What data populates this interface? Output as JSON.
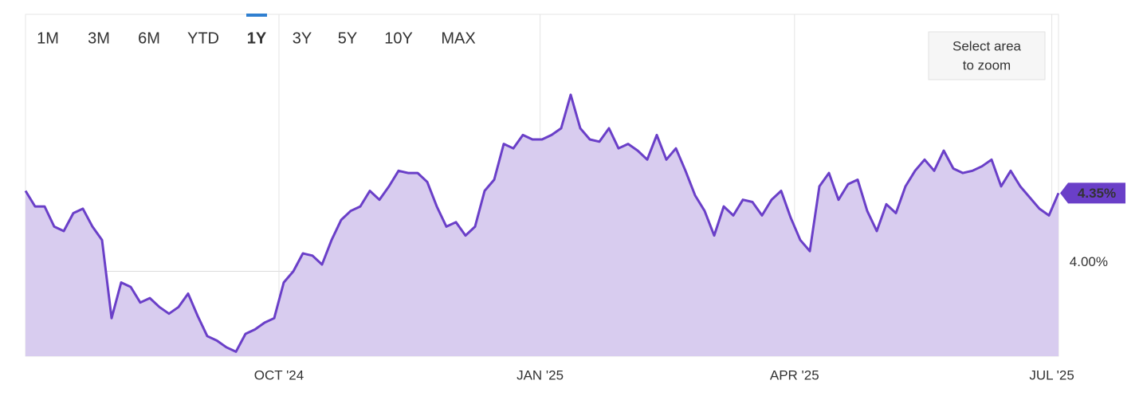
{
  "chart_data": {
    "type": "area",
    "range_buttons": [
      "1M",
      "3M",
      "6M",
      "YTD",
      "1Y",
      "3Y",
      "5Y",
      "10Y",
      "MAX"
    ],
    "active_range": "1Y",
    "disabled_ranges": [
      "10Y",
      "MAX"
    ],
    "zoom_hint": [
      "Select area",
      "to zoom"
    ],
    "color": "#6a3fc8",
    "fill_color": "#d8ccef",
    "values": [
      4.36,
      4.29,
      4.29,
      4.2,
      4.18,
      4.26,
      4.28,
      4.2,
      4.14,
      3.79,
      3.95,
      3.93,
      3.86,
      3.88,
      3.84,
      3.81,
      3.84,
      3.9,
      3.8,
      3.71,
      3.69,
      3.66,
      3.64,
      3.72,
      3.74,
      3.77,
      3.79,
      3.95,
      4.0,
      4.08,
      4.07,
      4.03,
      4.14,
      4.23,
      4.27,
      4.29,
      4.36,
      4.32,
      4.38,
      4.45,
      4.44,
      4.44,
      4.4,
      4.29,
      4.2,
      4.22,
      4.16,
      4.2,
      4.36,
      4.41,
      4.57,
      4.55,
      4.61,
      4.59,
      4.59,
      4.61,
      4.64,
      4.79,
      4.64,
      4.59,
      4.58,
      4.64,
      4.55,
      4.57,
      4.54,
      4.5,
      4.61,
      4.5,
      4.55,
      4.45,
      4.34,
      4.27,
      4.16,
      4.29,
      4.25,
      4.32,
      4.31,
      4.25,
      4.32,
      4.36,
      4.24,
      4.14,
      4.09,
      4.38,
      4.44,
      4.32,
      4.39,
      4.41,
      4.27,
      4.18,
      4.3,
      4.26,
      4.38,
      4.45,
      4.5,
      4.45,
      4.54,
      4.46,
      4.44,
      4.45,
      4.47,
      4.5,
      4.38,
      4.45,
      4.38,
      4.33,
      4.28,
      4.25,
      4.35
    ],
    "xlim": [
      0,
      108
    ],
    "xticks": [
      {
        "value": 26.5,
        "label": "OCT '24"
      },
      {
        "value": 53.8,
        "label": "JAN '25"
      },
      {
        "value": 80.4,
        "label": "APR '25"
      },
      {
        "value": 107.3,
        "label": "JUL '25"
      }
    ],
    "ylim": [
      3.62,
      5.15
    ],
    "yticks": [
      {
        "value": 4,
        "label": "4.00%"
      }
    ],
    "current": {
      "value": 4.35,
      "label": "4.35%"
    },
    "grid": true
  }
}
